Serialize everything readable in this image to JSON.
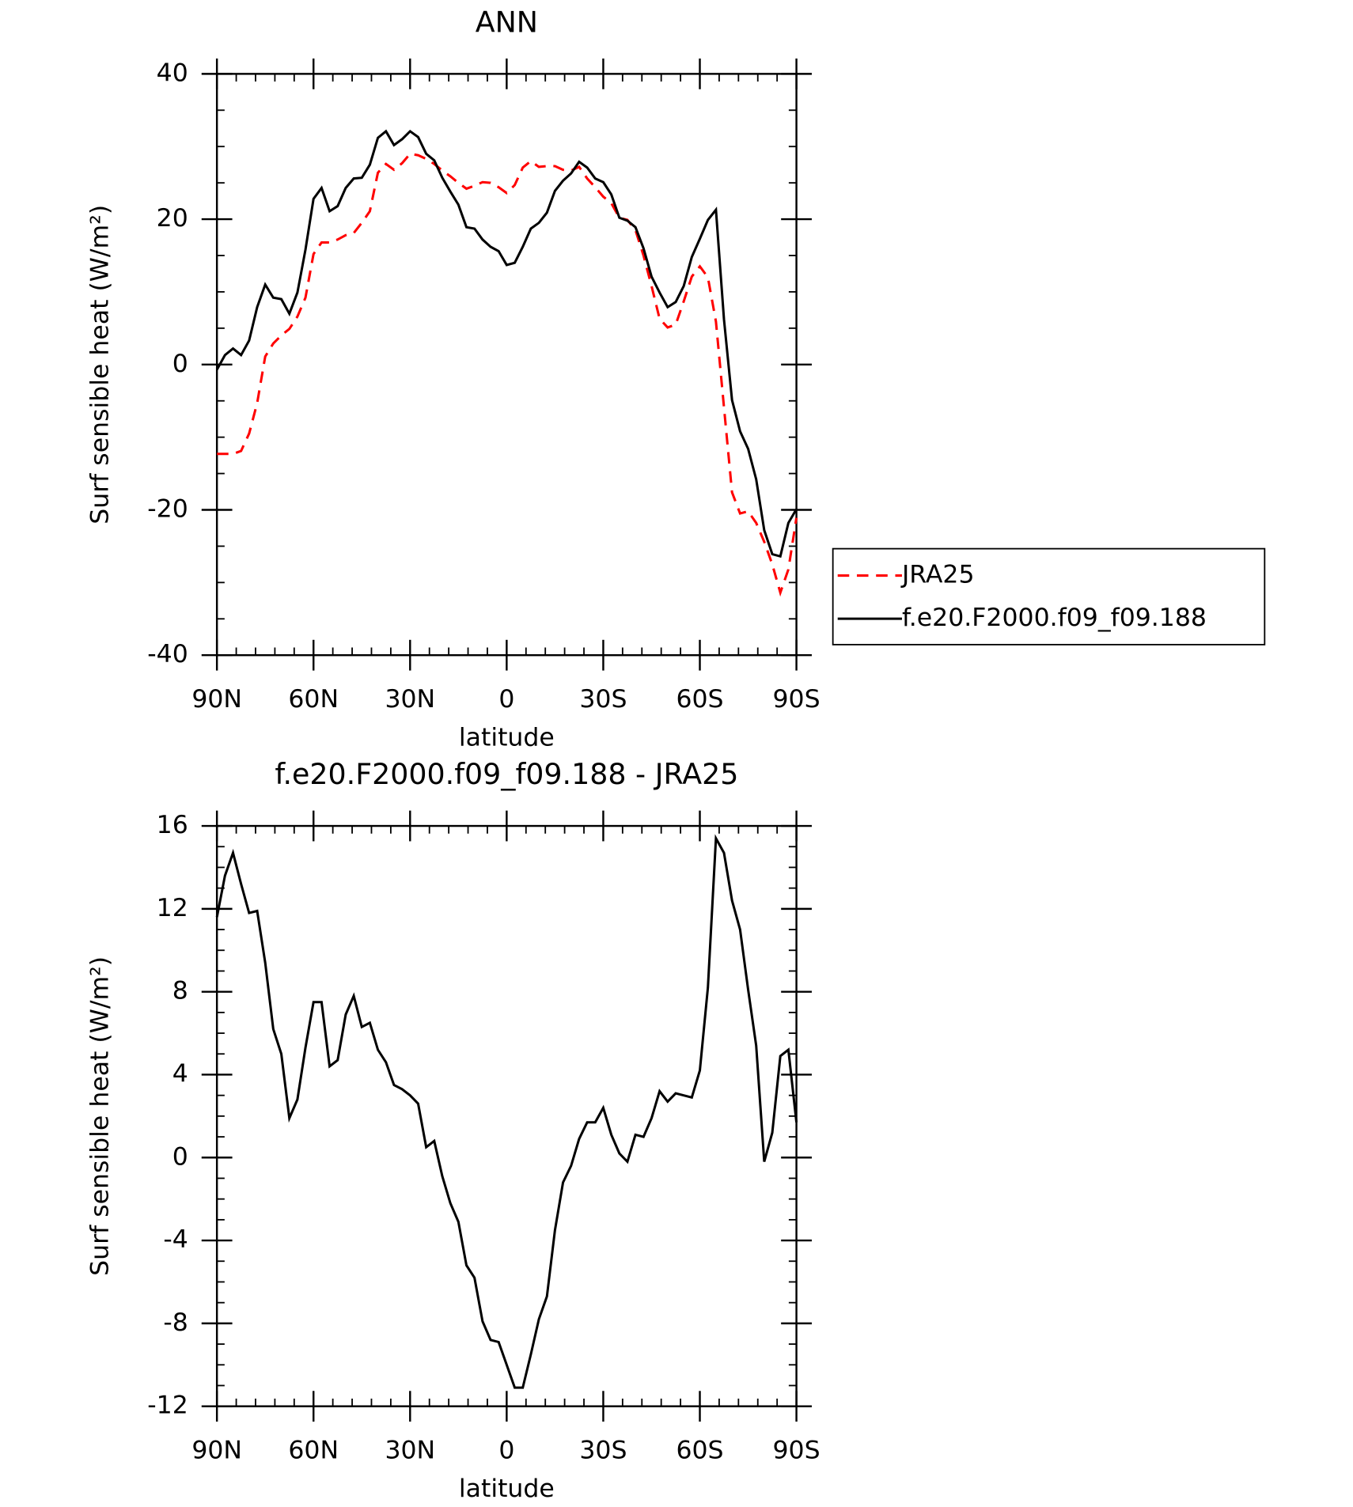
{
  "chart_data": [
    {
      "type": "line",
      "title": "ANN",
      "x_label": "latitude",
      "y_label": "Surf sensible heat (W/m²)",
      "x": [
        90,
        87.5,
        85,
        82.5,
        80,
        77.5,
        75,
        72.5,
        70,
        67.5,
        65,
        62.5,
        60,
        57.5,
        55,
        52.5,
        50,
        47.5,
        45,
        42.5,
        40,
        37.5,
        35,
        32.5,
        30,
        27.5,
        25,
        22.5,
        20,
        17.5,
        15,
        12.5,
        10,
        7.5,
        5,
        2.5,
        0,
        -2.5,
        -5,
        -7.5,
        -10,
        -12.5,
        -15,
        -17.5,
        -20,
        -22.5,
        -25,
        -27.5,
        -30,
        -32.5,
        -35,
        -37.5,
        -40,
        -42.5,
        -45,
        -47.5,
        -50,
        -52.5,
        -55,
        -57.5,
        -60,
        -62.5,
        -65,
        -67.5,
        -70,
        -72.5,
        -75,
        -77.5,
        -80,
        -82.5,
        -85,
        -87.5,
        -90
      ],
      "xlim": [
        90,
        -90
      ],
      "xticks": [
        {
          "value": 90,
          "label": "90N"
        },
        {
          "value": 60,
          "label": "60N"
        },
        {
          "value": 30,
          "label": "30N"
        },
        0,
        {
          "value": -30,
          "label": "30S"
        },
        {
          "value": -60,
          "label": "60S"
        },
        {
          "value": -90,
          "label": "90S"
        }
      ],
      "ylim": [
        -40,
        40
      ],
      "yticks": [
        -40,
        -20,
        0,
        20,
        40
      ],
      "legend": "right",
      "series": [
        {
          "name": "JRA25",
          "color": "#ff0000",
          "dashed": true,
          "values": [
            -12.3,
            -12.3,
            -12.3,
            -11.9,
            -9.5,
            -5.3,
            1.1,
            2.9,
            4.0,
            4.9,
            6.6,
            9.2,
            15.2,
            16.8,
            16.8,
            17.2,
            17.8,
            18.1,
            19.5,
            21.1,
            26.4,
            27.6,
            26.8,
            27.7,
            29.0,
            28.8,
            28.3,
            27.6,
            26.7,
            25.9,
            25.0,
            24.2,
            24.6,
            25.1,
            25.0,
            24.4,
            23.6,
            24.7,
            27.1,
            28.0,
            27.2,
            27.3,
            27.3,
            26.8,
            26.7,
            27.2,
            25.6,
            24.4,
            23.1,
            22.2,
            20.2,
            19.9,
            18.5,
            15.0,
            10.8,
            6.3,
            5.1,
            5.5,
            8.7,
            12.1,
            13.5,
            12.0,
            5.9,
            -5.9,
            -17.6,
            -20.5,
            -20.2,
            -21.8,
            -24.4,
            -27.5,
            -31.4,
            -28.2,
            -21.1
          ]
        },
        {
          "name": "f.e20.F2000.f09_f09.188",
          "color": "#000000",
          "dashed": false,
          "values": [
            -0.7,
            1.3,
            2.2,
            1.3,
            3.3,
            7.9,
            11.0,
            9.2,
            9.0,
            7.0,
            9.9,
            15.8,
            22.8,
            24.3,
            21.1,
            21.8,
            24.3,
            25.6,
            25.7,
            27.5,
            31.2,
            32.1,
            30.2,
            31.0,
            32.1,
            31.3,
            29.0,
            28.1,
            25.7,
            23.8,
            22.0,
            18.9,
            18.7,
            17.2,
            16.2,
            15.6,
            13.7,
            14.0,
            16.2,
            18.7,
            19.5,
            20.9,
            23.9,
            25.3,
            26.3,
            27.9,
            27.1,
            25.6,
            25.1,
            23.4,
            20.2,
            19.8,
            18.9,
            16.0,
            12.1,
            9.9,
            7.9,
            8.6,
            10.8,
            14.8,
            17.3,
            19.9,
            21.3,
            6.2,
            -4.9,
            -9.2,
            -11.6,
            -15.8,
            -22.8,
            -26.1,
            -26.4,
            -21.8,
            -19.9
          ]
        }
      ]
    },
    {
      "type": "line",
      "title": "f.e20.F2000.f09_f09.188 - JRA25",
      "x_label": "latitude",
      "y_label": "Surf sensible heat (W/m²)",
      "x": [
        90,
        87.5,
        85,
        82.5,
        80,
        77.5,
        75,
        72.5,
        70,
        67.5,
        65,
        62.5,
        60,
        57.5,
        55,
        52.5,
        50,
        47.5,
        45,
        42.5,
        40,
        37.5,
        35,
        32.5,
        30,
        27.5,
        25,
        22.5,
        20,
        17.5,
        15,
        12.5,
        10,
        7.5,
        5,
        2.5,
        0,
        -2.5,
        -5,
        -7.5,
        -10,
        -12.5,
        -15,
        -17.5,
        -20,
        -22.5,
        -25,
        -27.5,
        -30,
        -32.5,
        -35,
        -37.5,
        -40,
        -42.5,
        -45,
        -47.5,
        -50,
        -52.5,
        -55,
        -57.5,
        -60,
        -62.5,
        -65,
        -67.5,
        -70,
        -72.5,
        -75,
        -77.5,
        -80,
        -82.5,
        -85,
        -87.5,
        -90
      ],
      "xlim": [
        90,
        -90
      ],
      "xticks": [
        {
          "value": 90,
          "label": "90N"
        },
        {
          "value": 60,
          "label": "60N"
        },
        {
          "value": 30,
          "label": "30N"
        },
        0,
        {
          "value": -30,
          "label": "30S"
        },
        {
          "value": -60,
          "label": "60S"
        },
        {
          "value": -90,
          "label": "90S"
        }
      ],
      "ylim": [
        -12,
        16
      ],
      "yticks": [
        -12,
        -8,
        -4,
        0,
        4,
        8,
        12,
        16
      ],
      "series": [
        {
          "color": "#000000",
          "dashed": false,
          "values": [
            11.6,
            13.6,
            14.7,
            13.2,
            11.8,
            11.9,
            9.4,
            6.2,
            5.0,
            1.9,
            2.8,
            5.3,
            7.5,
            7.5,
            4.4,
            4.7,
            6.9,
            7.8,
            6.3,
            6.5,
            5.2,
            4.6,
            3.5,
            3.3,
            3.0,
            2.6,
            0.5,
            0.8,
            -0.9,
            -2.2,
            -3.1,
            -5.2,
            -5.8,
            -7.9,
            -8.8,
            -8.9,
            -10.0,
            -11.1,
            -11.1,
            -9.5,
            -7.8,
            -6.7,
            -3.5,
            -1.2,
            -0.4,
            0.9,
            1.7,
            1.7,
            2.4,
            1.1,
            0.2,
            -0.2,
            1.1,
            1.0,
            1.9,
            3.2,
            2.7,
            3.1,
            3.0,
            2.9,
            4.2,
            8.2,
            15.4,
            14.7,
            12.4,
            11.0,
            8.1,
            5.4,
            -0.2,
            1.2,
            4.9,
            5.2,
            1.7
          ]
        }
      ]
    }
  ]
}
